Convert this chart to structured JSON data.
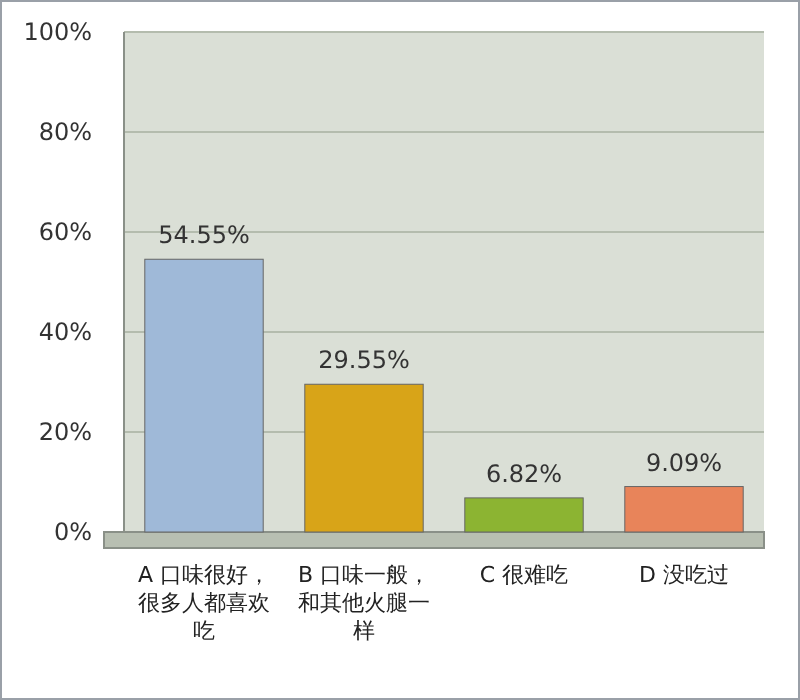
{
  "chart_data": {
    "type": "bar",
    "categories": [
      "A 口味很好，很多人都喜欢吃",
      "B 口味一般，和其他火腿一样",
      "C 很难吃",
      "D 没吃过"
    ],
    "values": [
      54.55,
      29.55,
      6.82,
      9.09
    ],
    "colors": [
      "#9fb9d8",
      "#d8a418",
      "#8cb432",
      "#e8845a"
    ],
    "value_labels": [
      "54.55%",
      "29.55%",
      "6.82%",
      "9.09%"
    ],
    "ylim": [
      0,
      100
    ],
    "yticks": [
      {
        "value": 0,
        "label": "0%"
      },
      {
        "value": 20,
        "label": "20%"
      },
      {
        "value": 40,
        "label": "40%"
      },
      {
        "value": 60,
        "label": "60%"
      },
      {
        "value": 80,
        "label": "80%"
      },
      {
        "value": 100,
        "label": "100%"
      }
    ],
    "grid": "y"
  }
}
